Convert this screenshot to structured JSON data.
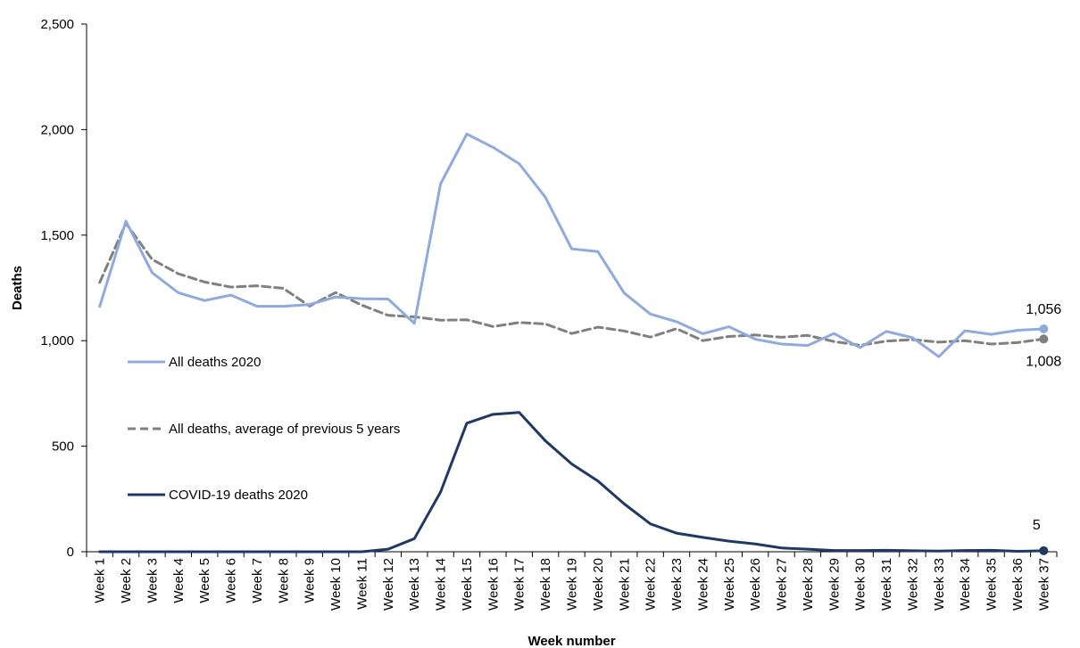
{
  "chart_data": {
    "type": "line",
    "xlabel": "Week number",
    "ylabel": "Deaths",
    "ylim": [
      0,
      2500
    ],
    "yticks": [
      0,
      500,
      1000,
      1500,
      2000,
      2500
    ],
    "ytick_labels": [
      "0",
      "500",
      "1,000",
      "1,500",
      "2,000",
      "2,500"
    ],
    "grid": false,
    "legend_position": "left, inside plot",
    "categories": [
      "Week 1",
      "Week 2",
      "Week 3",
      "Week 4",
      "Week 5",
      "Week 6",
      "Week 7",
      "Week 8",
      "Week 9",
      "Week 10",
      "Week 11",
      "Week 12",
      "Week 13",
      "Week 14",
      "Week 15",
      "Week 16",
      "Week 17",
      "Week 18",
      "Week 19",
      "Week 20",
      "Week 21",
      "Week 22",
      "Week 23",
      "Week 24",
      "Week 25",
      "Week 26",
      "Week 27",
      "Week 28",
      "Week 29",
      "Week 30",
      "Week 31",
      "Week 32",
      "Week 33",
      "Week 34",
      "Week 35",
      "Week 36",
      "Week 37"
    ],
    "series": [
      {
        "name": "All deaths 2020",
        "color": "#8faadc",
        "style": "solid",
        "values": [
          1162,
          1566,
          1322,
          1227,
          1190,
          1216,
          1163,
          1163,
          1171,
          1207,
          1199,
          1197,
          1082,
          1743,
          1979,
          1916,
          1838,
          1679,
          1435,
          1422,
          1226,
          1126,
          1090,
          1033,
          1066,
          1007,
          984,
          977,
          1034,
          967,
          1044,
          1014,
          924,
          1047,
          1030,
          1049,
          1056
        ],
        "end_label": "1,056"
      },
      {
        "name": "All deaths, average of previous 5 years",
        "color": "#808080",
        "style": "dashed",
        "values": [
          1276,
          1556,
          1385,
          1317,
          1278,
          1254,
          1260,
          1248,
          1164,
          1228,
          1168,
          1120,
          1113,
          1097,
          1099,
          1067,
          1086,
          1079,
          1034,
          1064,
          1046,
          1017,
          1057,
          1000,
          1020,
          1027,
          1016,
          1025,
          996,
          978,
          998,
          1005,
          993,
          1000,
          984,
          991,
          1008
        ],
        "end_label": "1,008"
      },
      {
        "name": "COVID-19 deaths 2020",
        "color": "#1f3864",
        "style": "solid",
        "values": [
          0,
          0,
          0,
          0,
          0,
          0,
          0,
          0,
          0,
          0,
          0,
          12,
          62,
          283,
          609,
          651,
          660,
          525,
          416,
          335,
          227,
          132,
          88,
          68,
          50,
          37,
          18,
          12,
          6,
          6,
          7,
          5,
          3,
          6,
          7,
          2,
          5
        ],
        "end_label": "5"
      }
    ]
  }
}
